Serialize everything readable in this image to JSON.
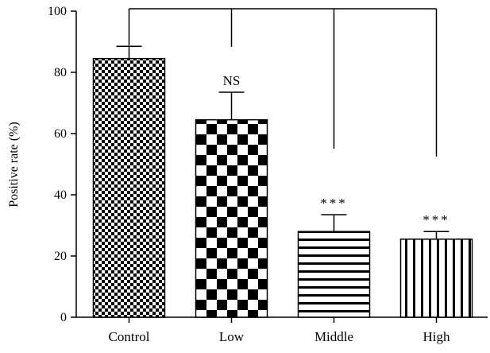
{
  "chart_data": {
    "type": "bar",
    "title": "",
    "xlabel": "",
    "ylabel": "Positive rate (%)",
    "ylim": [
      0,
      100
    ],
    "yticks": [
      0,
      20,
      40,
      60,
      80,
      100
    ],
    "grid": false,
    "categories": [
      "Control",
      "Low",
      "Middle",
      "High"
    ],
    "values": [
      84.5,
      64.5,
      28,
      25.5
    ],
    "error_upper": [
      88.5,
      73.5,
      33.5,
      28
    ],
    "significance": [
      "",
      "NS",
      "***",
      "***"
    ],
    "fill_patterns": [
      "fine-checker",
      "coarse-checker",
      "horizontal-stripes",
      "vertical-stripes"
    ],
    "colors": {
      "ink": "#000000",
      "background": "#ffffff"
    }
  }
}
